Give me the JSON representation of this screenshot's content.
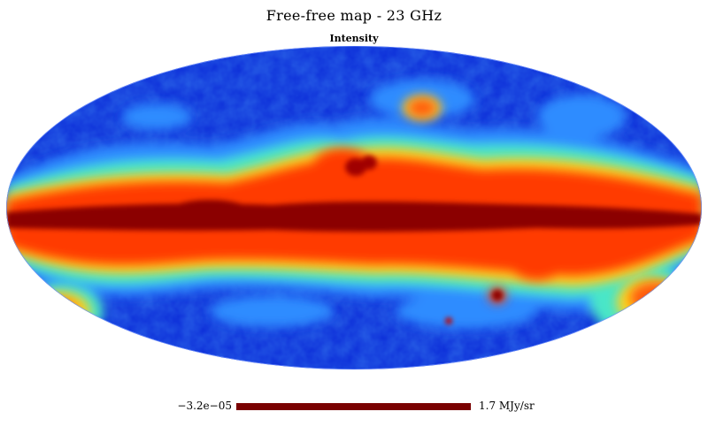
{
  "map": {
    "title": "Free-free map - 23 GHz",
    "subtitle": "Intensity",
    "projection": "mollweide",
    "colormap": "jet",
    "colors": {
      "low": "#0b2bd8",
      "mid_low": "#2e8cff",
      "mid": "#48e6c8",
      "mid_high": "#ffd21a",
      "high": "#ff3a00",
      "max": "#8b0000"
    }
  },
  "colorbar": {
    "min_label": "−3.2e−05",
    "max_label": "1.7 MJy/sr",
    "color": "#7a0000"
  }
}
